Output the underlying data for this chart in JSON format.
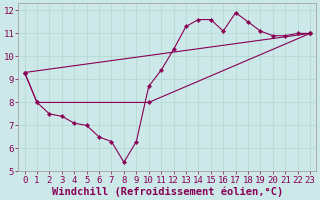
{
  "xlabel": "Windchill (Refroidissement éolien,°C)",
  "bg_color": "#cce8e8",
  "line_color": "#880055",
  "xlim": [
    -0.5,
    23.5
  ],
  "ylim": [
    5,
    12.3
  ],
  "xticks": [
    0,
    1,
    2,
    3,
    4,
    5,
    6,
    7,
    8,
    9,
    10,
    11,
    12,
    13,
    14,
    15,
    16,
    17,
    18,
    19,
    20,
    21,
    22,
    23
  ],
  "yticks": [
    5,
    6,
    7,
    8,
    9,
    10,
    11,
    12
  ],
  "lines": [
    {
      "x": [
        0,
        1,
        2,
        3,
        4,
        5,
        6,
        7,
        8,
        9,
        10,
        11,
        12,
        13,
        14,
        15,
        16,
        17,
        18,
        19,
        20,
        21,
        22,
        23
      ],
      "y": [
        9.3,
        8.0,
        7.5,
        7.4,
        7.1,
        7.0,
        6.5,
        6.3,
        5.4,
        6.3,
        8.7,
        9.4,
        10.3,
        11.3,
        11.6,
        11.6,
        11.1,
        11.9,
        11.5,
        11.1,
        10.9,
        10.9,
        11.0,
        11.0
      ]
    },
    {
      "x": [
        0,
        1,
        10,
        23
      ],
      "y": [
        9.3,
        8.0,
        8.0,
        11.0
      ]
    },
    {
      "x": [
        0,
        23
      ],
      "y": [
        9.3,
        11.0
      ]
    }
  ],
  "grid_color": "#b0d8d0",
  "tick_fontsize": 6.5,
  "xlabel_fontsize": 7.5
}
